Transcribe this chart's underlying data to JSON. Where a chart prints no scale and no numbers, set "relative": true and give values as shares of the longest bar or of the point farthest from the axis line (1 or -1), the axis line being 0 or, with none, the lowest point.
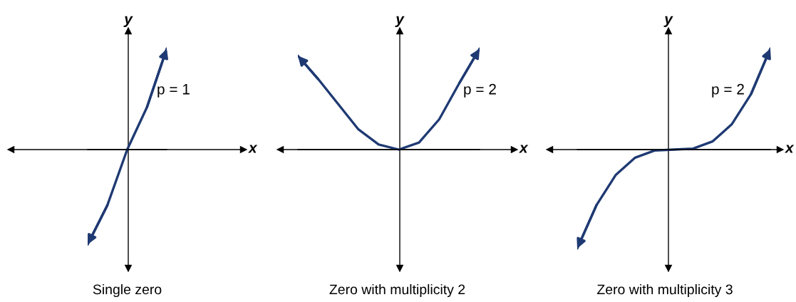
{
  "chart_data": [
    {
      "type": "line",
      "relative": true,
      "xlabel": "x",
      "ylabel": "y",
      "categories": [
        null,
        null,
        null,
        null,
        null
      ],
      "series": [
        {
          "color": "#1f3a73",
          "values": [
            -0.94,
            -0.55,
            0,
            0.42,
            1.0
          ]
        }
      ],
      "annotations": [
        "p = 1",
        "Single zero"
      ],
      "marker": "none",
      "line_style": "solid",
      "grid": false,
      "legend": false,
      "tick_labels": false
    },
    {
      "type": "line",
      "relative": true,
      "xlabel": "x",
      "ylabel": "y",
      "categories": [
        null,
        null,
        null,
        null,
        null,
        null,
        null,
        null,
        null,
        null
      ],
      "series": [
        {
          "color": "#1f3a73",
          "values": [
            0.93,
            0.7,
            0.45,
            0.2,
            0.05,
            0,
            0.07,
            0.3,
            0.66,
            1.0
          ]
        }
      ],
      "annotations": [
        "p = 2",
        "Zero with multiplicity 2"
      ],
      "marker": "none",
      "line_style": "solid",
      "grid": false,
      "legend": false,
      "tick_labels": false
    },
    {
      "type": "line",
      "relative": true,
      "xlabel": "x",
      "ylabel": "y",
      "categories": [
        null,
        null,
        null,
        null,
        null,
        null,
        null,
        null,
        null,
        null,
        null
      ],
      "series": [
        {
          "color": "#1f3a73",
          "values": [
            -0.98,
            -0.55,
            -0.25,
            -0.08,
            -0.01,
            0,
            0.01,
            0.08,
            0.25,
            0.55,
            1.0
          ]
        }
      ],
      "annotations": [
        "p = 2",
        "Zero with multiplicity 3"
      ],
      "marker": "none",
      "line_style": "solid",
      "grid": false,
      "legend": false,
      "tick_labels": false
    }
  ]
}
